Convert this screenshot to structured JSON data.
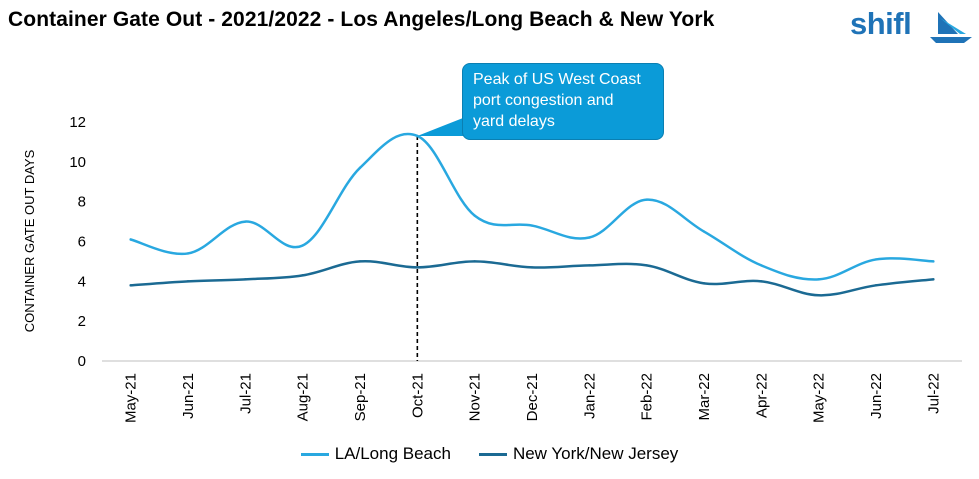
{
  "header": {
    "title": "Container Gate Out - 2021/2022 - Los Angeles/Long Beach & New York"
  },
  "logo": {
    "text": "shifl",
    "color": "#1f73b7"
  },
  "chart_data": {
    "type": "line",
    "title": "Container Gate Out - 2021/2022 - Los Angeles/Long Beach & New York",
    "xlabel": "",
    "ylabel": "CONTAINER GATE OUT DAYS",
    "ylim": [
      0,
      12
    ],
    "yticks": [
      0,
      2,
      4,
      6,
      8,
      10,
      12
    ],
    "grid": false,
    "legend": "bottom",
    "categories": [
      "May-21",
      "Jun-21",
      "Jul-21",
      "Aug-21",
      "Sep-21",
      "Oct-21",
      "Nov-21",
      "Dec-21",
      "Jan-22",
      "Feb-22",
      "Mar-22",
      "Apr-22",
      "May-22",
      "Jun-22",
      "Jul-22"
    ],
    "series": [
      {
        "name": "LA/Long Beach",
        "color": "#29a8e0",
        "values": [
          6.1,
          5.4,
          7.0,
          5.8,
          9.7,
          11.3,
          7.3,
          6.8,
          6.2,
          8.1,
          6.5,
          4.8,
          4.1,
          5.1,
          5.0
        ]
      },
      {
        "name": "New York/New Jersey",
        "color": "#1b6a93",
        "values": [
          3.8,
          4.0,
          4.1,
          4.3,
          5.0,
          4.7,
          5.0,
          4.7,
          4.8,
          4.8,
          3.9,
          4.0,
          3.3,
          3.8,
          4.1
        ]
      }
    ],
    "annotation": {
      "category": "Oct-21",
      "value": 11.3,
      "lines": [
        "Peak of US West Coast",
        "port congestion and",
        "yard delays"
      ],
      "fill": "#0b9bd8"
    }
  }
}
